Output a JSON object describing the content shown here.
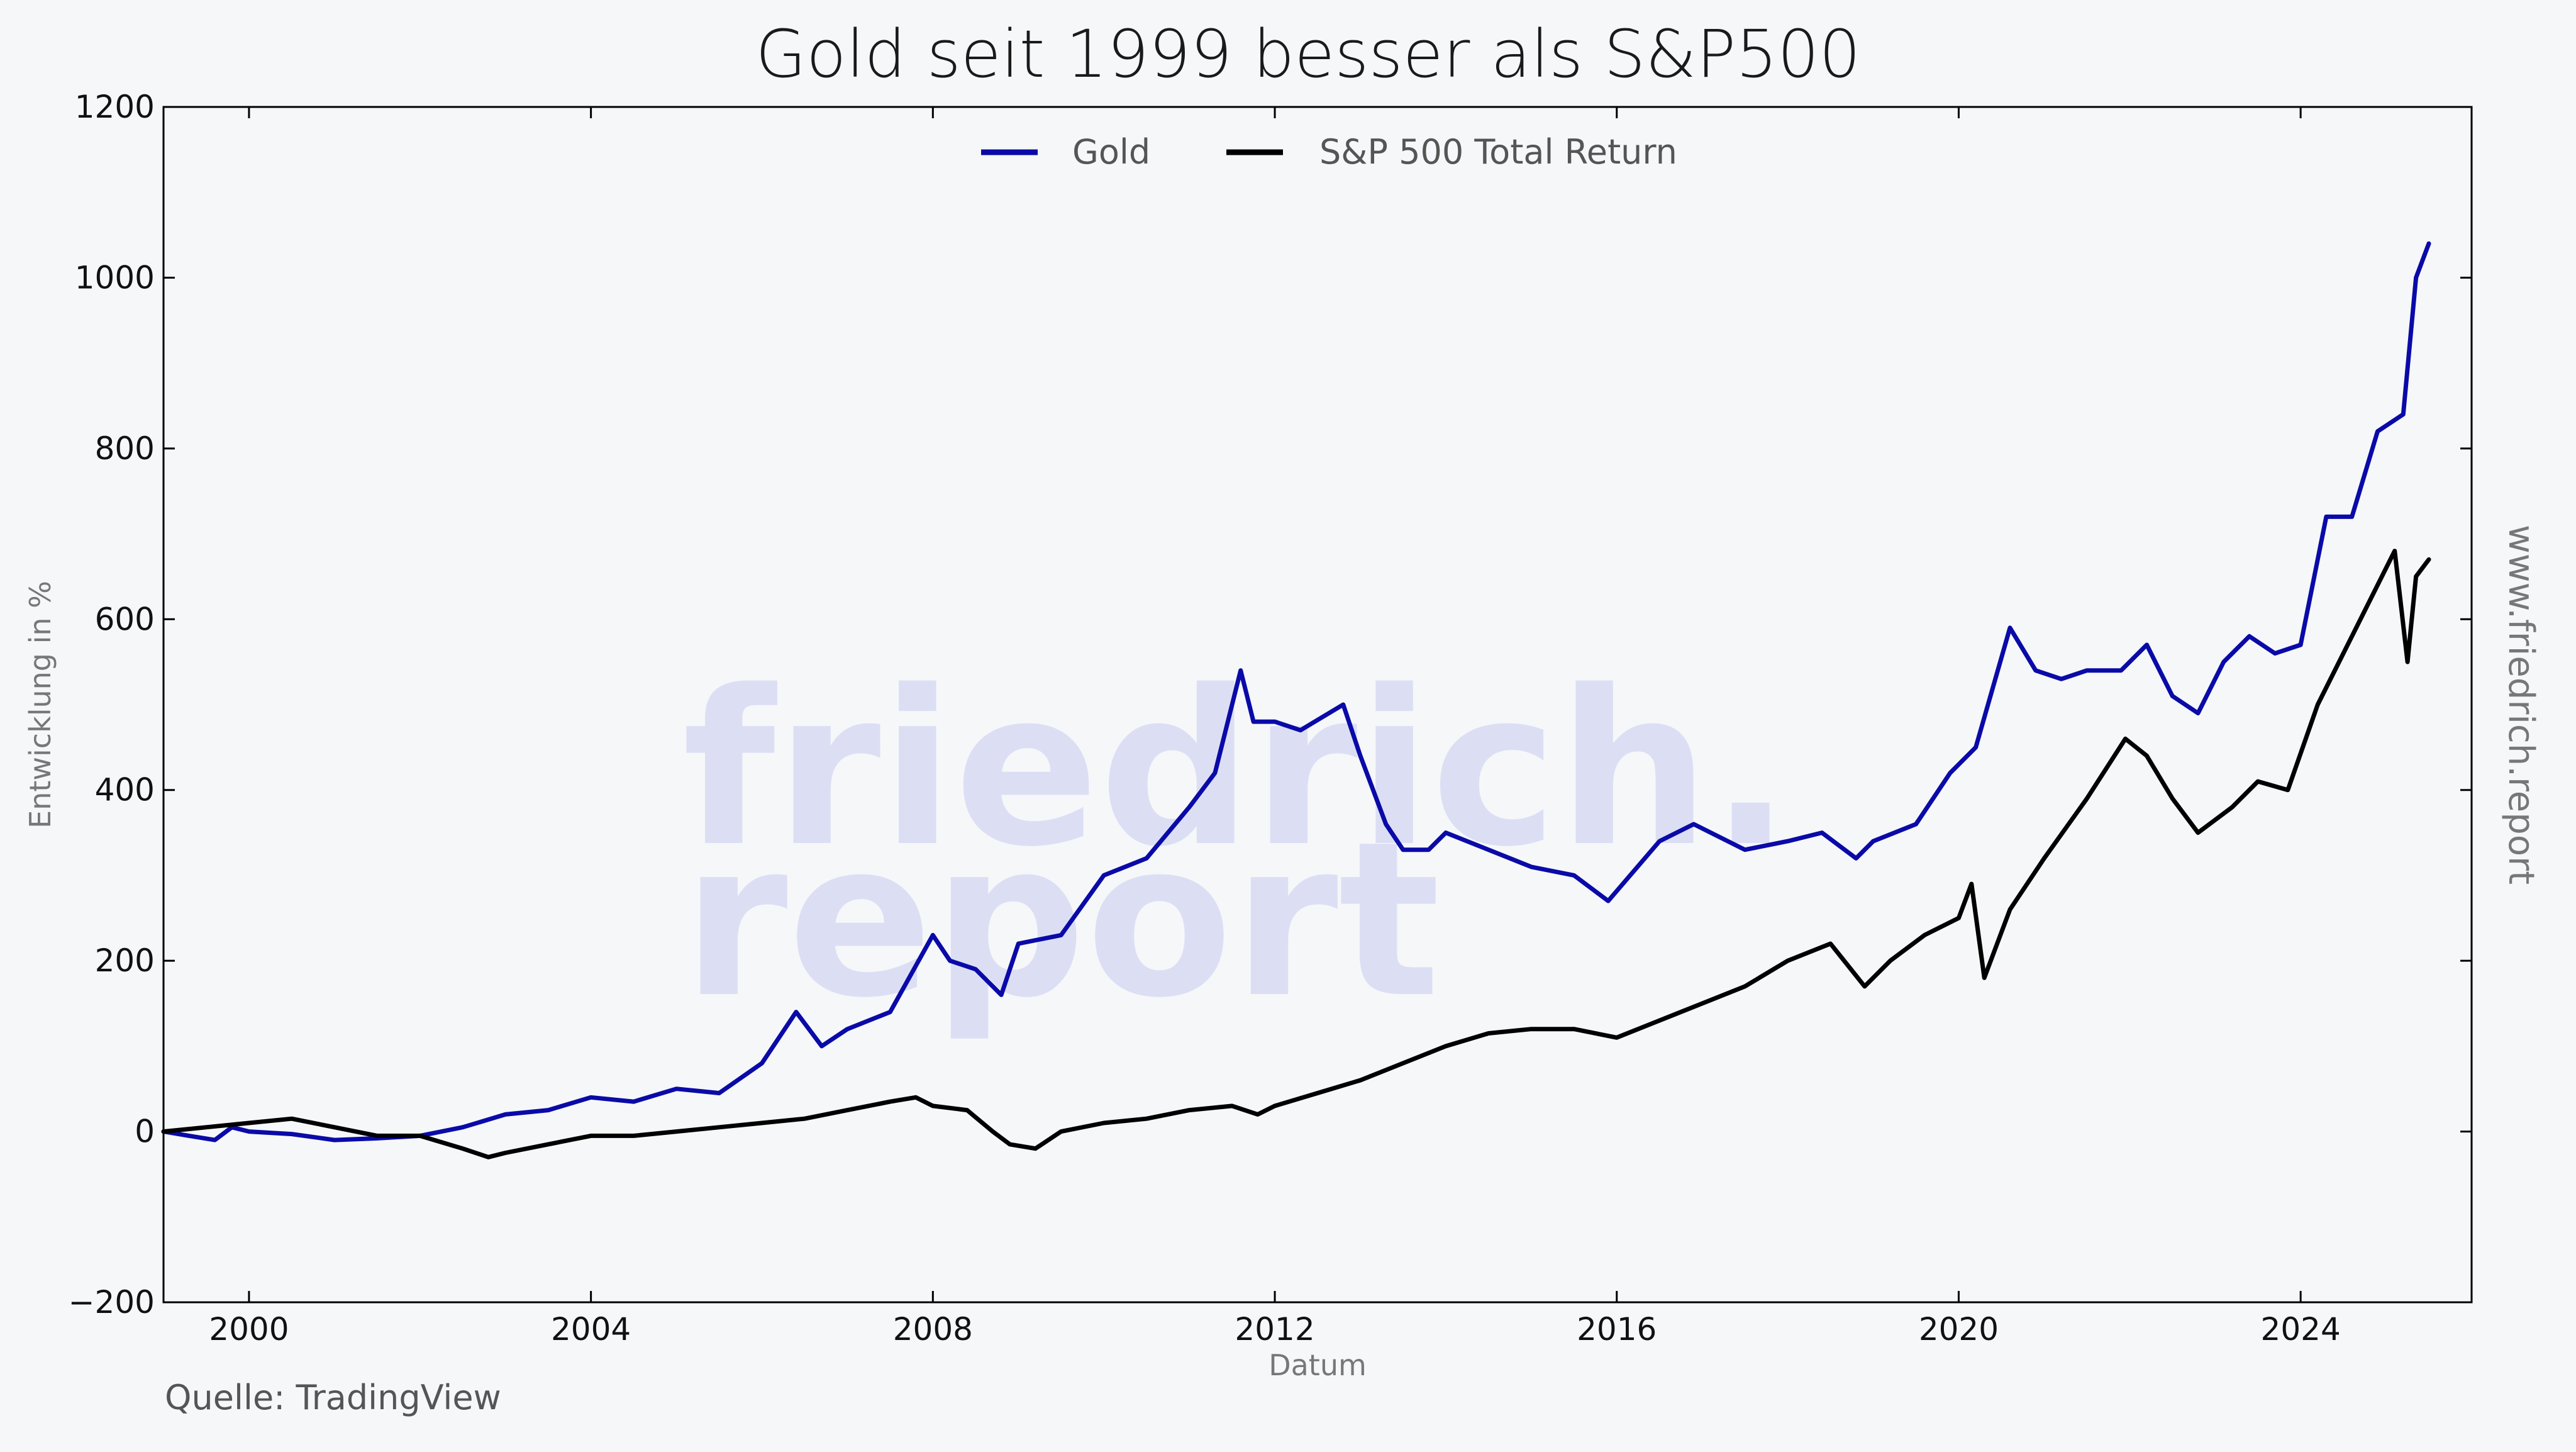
{
  "page": {
    "title": "Gold seit 1999 besser als S&P500",
    "source": "Quelle: TradingView",
    "site": "www.friedrich.report",
    "watermark_line1": "friedrich.",
    "watermark_line2": "report"
  },
  "chart_data": {
    "type": "line",
    "title": "Gold seit 1999 besser als S&P500",
    "xlabel": "Datum",
    "ylabel": "Entwicklung in %",
    "xlim": [
      1999.0,
      2026.0
    ],
    "ylim": [
      -200,
      1200
    ],
    "x_ticks": [
      2000,
      2004,
      2008,
      2012,
      2016,
      2020,
      2024
    ],
    "y_ticks": [
      -200,
      0,
      200,
      400,
      600,
      800,
      1000,
      1200
    ],
    "y_tick_labels": [
      "−200",
      "0",
      "200",
      "400",
      "600",
      "800",
      "1000",
      "1200"
    ],
    "legend_position": "top-center",
    "grid": false,
    "series": [
      {
        "name": "Gold",
        "color": "#0a0aa8",
        "x": [
          1999.0,
          1999.3,
          1999.6,
          1999.8,
          2000.0,
          2000.5,
          2001.0,
          2001.5,
          2002.0,
          2002.5,
          2003.0,
          2003.5,
          2004.0,
          2004.5,
          2005.0,
          2005.5,
          2006.0,
          2006.4,
          2006.7,
          2007.0,
          2007.5,
          2008.0,
          2008.2,
          2008.5,
          2008.8,
          2009.0,
          2009.5,
          2010.0,
          2010.5,
          2011.0,
          2011.3,
          2011.6,
          2011.75,
          2012.0,
          2012.3,
          2012.8,
          2013.0,
          2013.3,
          2013.5,
          2013.8,
          2014.0,
          2014.5,
          2015.0,
          2015.5,
          2015.9,
          2016.5,
          2016.9,
          2017.5,
          2018.0,
          2018.4,
          2018.8,
          2019.0,
          2019.5,
          2019.9,
          2020.2,
          2020.6,
          2020.9,
          2021.2,
          2021.5,
          2021.9,
          2022.2,
          2022.5,
          2022.8,
          2023.1,
          2023.4,
          2023.7,
          2024.0,
          2024.3,
          2024.6,
          2024.9,
          2025.2,
          2025.35,
          2025.5
        ],
        "values": [
          0,
          -5,
          -10,
          5,
          0,
          -3,
          -10,
          -8,
          -5,
          5,
          20,
          25,
          40,
          35,
          50,
          45,
          80,
          140,
          100,
          120,
          140,
          230,
          200,
          190,
          160,
          220,
          230,
          300,
          320,
          380,
          420,
          540,
          480,
          480,
          470,
          500,
          440,
          360,
          330,
          330,
          350,
          330,
          310,
          300,
          270,
          340,
          360,
          330,
          340,
          350,
          320,
          340,
          360,
          420,
          450,
          590,
          540,
          530,
          540,
          540,
          570,
          510,
          490,
          550,
          580,
          560,
          570,
          720,
          720,
          820,
          840,
          1000,
          1040
        ]
      },
      {
        "name": "S&P 500 Total Return",
        "color": "#000000",
        "x": [
          1999.0,
          1999.5,
          2000.0,
          2000.5,
          2001.0,
          2001.5,
          2002.0,
          2002.5,
          2002.8,
          2003.0,
          2003.5,
          2004.0,
          2004.5,
          2005.0,
          2005.5,
          2006.0,
          2006.5,
          2007.0,
          2007.5,
          2007.8,
          2008.0,
          2008.4,
          2008.7,
          2008.9,
          2009.2,
          2009.5,
          2010.0,
          2010.5,
          2011.0,
          2011.5,
          2011.8,
          2012.0,
          2012.5,
          2013.0,
          2013.5,
          2014.0,
          2014.5,
          2015.0,
          2015.5,
          2016.0,
          2016.5,
          2017.0,
          2017.5,
          2018.0,
          2018.5,
          2018.9,
          2019.2,
          2019.6,
          2020.0,
          2020.15,
          2020.3,
          2020.6,
          2021.0,
          2021.5,
          2021.95,
          2022.2,
          2022.5,
          2022.8,
          2023.2,
          2023.5,
          2023.85,
          2024.2,
          2024.6,
          2025.1,
          2025.25,
          2025.35,
          2025.5
        ],
        "values": [
          0,
          5,
          10,
          15,
          5,
          -5,
          -5,
          -20,
          -30,
          -25,
          -15,
          -5,
          -5,
          0,
          5,
          10,
          15,
          25,
          35,
          40,
          30,
          25,
          0,
          -15,
          -20,
          0,
          10,
          15,
          25,
          30,
          20,
          30,
          45,
          60,
          80,
          100,
          115,
          120,
          120,
          110,
          130,
          150,
          170,
          200,
          220,
          170,
          200,
          230,
          250,
          290,
          180,
          260,
          320,
          390,
          460,
          440,
          390,
          350,
          380,
          410,
          400,
          500,
          580,
          680,
          550,
          650,
          670
        ]
      }
    ]
  }
}
